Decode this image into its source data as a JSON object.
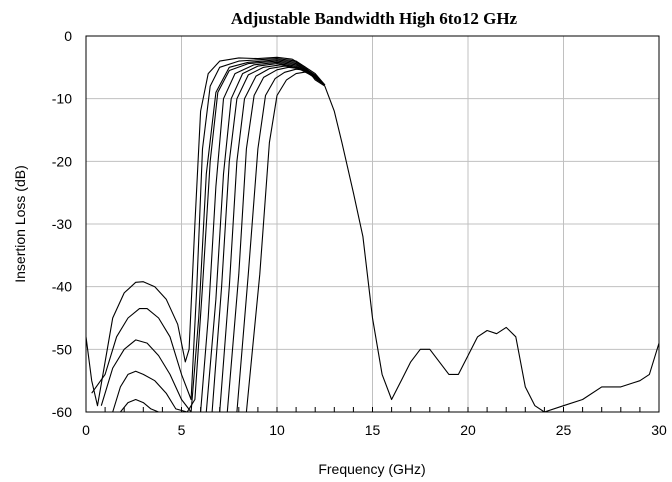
{
  "chart_data": {
    "type": "line",
    "title": "Adjustable Bandwidth High 6to12 GHz",
    "xlabel": "Frequency (GHz)",
    "ylabel": "Insertion Loss (dB)",
    "xlim": [
      0,
      30
    ],
    "ylim": [
      -60,
      0
    ],
    "xticks": [
      "0",
      "5",
      "10",
      "15",
      "20",
      "25",
      "30"
    ],
    "yticks": [
      "0",
      "-10",
      "-20",
      "-30",
      "-40",
      "-50",
      "-60"
    ],
    "grid": true,
    "line_color": "#000000",
    "series": [
      {
        "x": [
          0,
          0.3,
          0.6,
          1.0,
          1.4,
          2.0,
          2.6,
          3.0,
          3.6,
          4.2,
          4.8,
          5.2,
          5.4,
          5.7,
          6.0,
          6.4,
          7.0,
          8.0,
          9.0,
          10.0,
          10.8,
          11.5,
          12.0,
          12.5,
          13.0,
          13.4,
          14.0,
          14.5,
          15.0,
          15.5,
          16.0,
          16.5,
          17.0,
          17.5,
          18.0,
          18.5,
          19.0,
          19.5,
          20.0,
          20.5,
          21.0,
          21.5,
          22.0,
          22.5,
          23.0,
          23.5,
          24.0,
          25.0,
          26.0,
          27.0,
          28.0,
          29.0,
          29.5,
          30.0
        ],
        "y": [
          -48,
          -55,
          -59,
          -52,
          -45,
          -41,
          -39.3,
          -39.2,
          -40,
          -42,
          -46,
          -52,
          -50,
          -30,
          -12,
          -6,
          -4,
          -3.5,
          -3.6,
          -3.4,
          -3.7,
          -5,
          -7,
          -8,
          -12,
          -17,
          -25,
          -32,
          -45,
          -54,
          -58,
          -55,
          -52,
          -50,
          -50,
          -52,
          -54,
          -54,
          -51,
          -48,
          -47,
          -47.5,
          -46.5,
          -48,
          -56,
          -59,
          -60,
          -59,
          -58,
          -56,
          -56,
          -55,
          -54,
          -49
        ]
      },
      {
        "x": [
          0.3,
          1.0,
          1.6,
          2.2,
          2.8,
          3.2,
          3.8,
          4.4,
          5.0,
          5.5,
          5.8,
          6.1,
          6.5,
          7.0,
          8.0,
          9.0,
          10.0,
          11.0,
          12.0,
          12.5
        ],
        "y": [
          -57,
          -54,
          -48,
          -45,
          -43.5,
          -43.5,
          -45,
          -48,
          -54,
          -58,
          -40,
          -18,
          -8,
          -5,
          -4,
          -3.8,
          -3.6,
          -4,
          -6,
          -7.8
        ]
      },
      {
        "x": [
          0.8,
          1.4,
          2.0,
          2.6,
          3.2,
          3.8,
          4.4,
          5.0,
          5.5,
          5.9,
          6.3,
          6.8,
          7.5,
          8.5,
          10.0,
          11.0,
          12.0,
          12.5
        ],
        "y": [
          -59,
          -53,
          -50,
          -48.5,
          -49,
          -51,
          -54,
          -58,
          -60,
          -45,
          -22,
          -9,
          -5,
          -4.2,
          -3.8,
          -4.2,
          -6.2,
          -7.8
        ]
      },
      {
        "x": [
          1.4,
          1.8,
          2.2,
          2.6,
          3.0,
          3.6,
          4.2,
          4.7,
          5.3,
          5.7,
          6.1,
          6.5,
          6.9,
          7.5,
          8.5,
          10.0,
          11.0,
          12.0,
          12.5
        ],
        "y": [
          -60,
          -56,
          -54,
          -53.5,
          -54,
          -55,
          -57,
          -59.5,
          -60,
          -58,
          -40,
          -20,
          -9,
          -5.5,
          -4.4,
          -4,
          -4.4,
          -6.3,
          -7.8
        ]
      },
      {
        "x": [
          1.8,
          2.2,
          2.6,
          3.0,
          3.4,
          3.8,
          4.2,
          6.0,
          6.4,
          6.8,
          7.2,
          7.8,
          8.8,
          10.0,
          11.0,
          12.0,
          12.5
        ],
        "y": [
          -60,
          -58.5,
          -58,
          -58.5,
          -59.5,
          -60,
          -60,
          -60,
          -45,
          -24,
          -10,
          -6,
          -4.6,
          -4.2,
          -4.6,
          -6.4,
          -7.8
        ]
      },
      {
        "x": [
          6.3,
          6.8,
          7.2,
          7.6,
          8.2,
          9.0,
          10.0,
          11.0,
          12.0,
          12.5
        ],
        "y": [
          -60,
          -42,
          -22,
          -10,
          -6,
          -4.8,
          -4.4,
          -4.8,
          -6.5,
          -7.8
        ]
      },
      {
        "x": [
          6.6,
          7.1,
          7.5,
          7.9,
          8.5,
          9.3,
          10.2,
          11.0,
          12.0,
          12.5
        ],
        "y": [
          -60,
          -40,
          -20,
          -10,
          -6.2,
          -5,
          -4.6,
          -5,
          -6.6,
          -7.8
        ]
      },
      {
        "x": [
          7.0,
          7.5,
          7.9,
          8.3,
          8.9,
          9.6,
          10.4,
          11.2,
          12.0,
          12.5
        ],
        "y": [
          -60,
          -40,
          -20,
          -10,
          -6.4,
          -5.2,
          -4.8,
          -5.1,
          -6.7,
          -7.8
        ]
      },
      {
        "x": [
          7.4,
          8.0,
          8.4,
          8.8,
          9.3,
          10.0,
          10.6,
          11.4,
          12.0,
          12.5
        ],
        "y": [
          -60,
          -38,
          -18,
          -9.5,
          -6.6,
          -5.4,
          -5,
          -5.3,
          -6.8,
          -7.8
        ]
      },
      {
        "x": [
          7.9,
          8.5,
          9.0,
          9.4,
          9.9,
          10.4,
          11.0,
          11.6,
          12.1,
          12.5
        ],
        "y": [
          -60,
          -38,
          -18,
          -9.5,
          -6.8,
          -5.8,
          -5.3,
          -5.5,
          -6.9,
          -7.8
        ]
      },
      {
        "x": [
          8.4,
          9.1,
          9.6,
          10.0,
          10.5,
          11.0,
          11.6,
          12.1,
          12.5
        ],
        "y": [
          -60,
          -38,
          -17,
          -9.5,
          -7,
          -6,
          -5.7,
          -7,
          -7.8
        ]
      }
    ]
  }
}
